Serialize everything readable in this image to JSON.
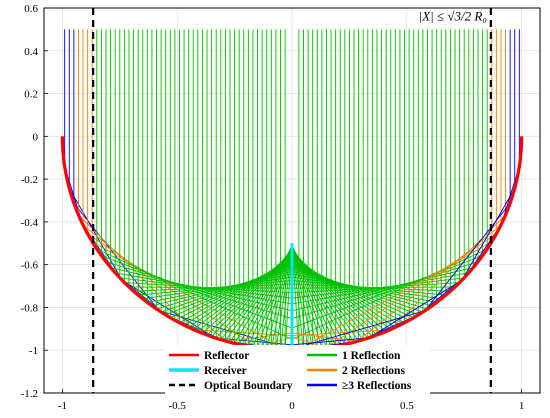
{
  "chart_data": {
    "type": "line",
    "title": "",
    "xlabel": "",
    "ylabel": "",
    "xlim": [
      -1.08,
      1.08
    ],
    "ylim": [
      -1.2,
      0.6
    ],
    "xticks": [
      -1,
      -0.5,
      0,
      0.5,
      1
    ],
    "xtick_labels": [
      "-1",
      "-0.5",
      "0",
      "0.5",
      "1"
    ],
    "yticks": [
      0.6,
      0.4,
      0.2,
      0,
      -0.2,
      -0.4,
      -0.6,
      -0.8,
      -1,
      -1.2
    ],
    "ytick_labels": [
      "0.6",
      "0.4",
      "0.2",
      "0",
      "-0.2",
      "-0.4",
      "-0.6",
      "-0.8",
      "-1",
      "-1.2"
    ],
    "grid": true,
    "reflector_radius": 1,
    "ray_top_y": 0.5,
    "optical_boundary_x": [
      -0.866,
      0.866
    ],
    "annotation": {
      "text": "|X| ≤ √3/2 R₀",
      "x": 0.866,
      "y": 0.57
    },
    "receiver": {
      "x": 0,
      "y_top": -0.5,
      "y_bottom": -1.0
    },
    "ray_regions": {
      "one_reflection_x_range": [
        -0.86,
        0.86
      ],
      "two_reflections_x_range": [
        0.87,
        0.94
      ],
      "three_plus_reflections_x_range": [
        0.95,
        0.99
      ],
      "ray_spacing": 0.02
    },
    "legend": {
      "placement": "bottom-center",
      "entries": [
        {
          "label": "Reflector",
          "color": "#ff0000",
          "style": "solid"
        },
        {
          "label": "1 Reflection",
          "color": "#00c000",
          "style": "solid"
        },
        {
          "label": "Receiver",
          "color": "#00e5ee",
          "style": "solid"
        },
        {
          "label": "2 Reflections",
          "color": "#ff8000",
          "style": "solid"
        },
        {
          "label": "Optical Boundary",
          "color": "#000000",
          "style": "dashed"
        },
        {
          "label": "≥3 Reflections",
          "color": "#0000ee",
          "style": "solid"
        }
      ]
    }
  }
}
